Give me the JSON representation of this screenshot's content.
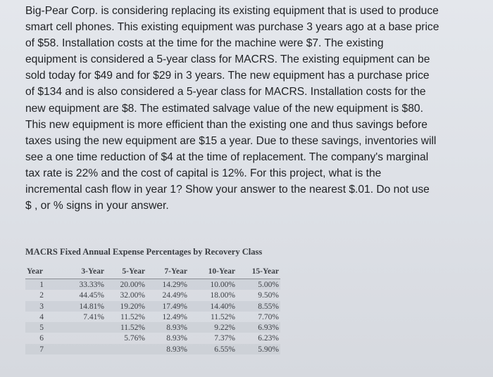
{
  "question": {
    "lines": [
      "Big-Pear Corp. is considering replacing its existing equipment that is used to produce",
      "smart cell phones. This existing equipment was purchase 3 years ago at a base price",
      "of $58. Installation costs at the time for the machine were $7. The existing",
      "equipment is considered a 5-year class for MACRS. The existing equipment can be",
      "sold today for $49 and for $29 in 3 years. The new equipment has a purchase price",
      "of $134 and is also considered a 5-year class for MACRS. Installation costs for the",
      "new equipment are $8. The estimated salvage value of the new equipment is $80.",
      "This new equipment is more efficient than the existing one and thus savings before",
      "taxes using the new equipment are $15 a year.  Due to these savings, inventories will",
      "see a one time reduction of $4 at the time of replacement. The company's marginal",
      "tax rate is 22% and the cost of capital is 12%. For this project, what is the",
      "incremental cash flow in year 1?  Show your answer to the nearest $.01.  Do not use",
      "$ , or % signs in your answer."
    ]
  },
  "macrs_table": {
    "title": "MACRS Fixed Annual Expense Percentages by Recovery Class",
    "headers": [
      "Year",
      "3-Year",
      "5-Year",
      "7-Year",
      "10-Year",
      "15-Year"
    ],
    "rows": [
      [
        "1",
        "33.33%",
        "20.00%",
        "14.29%",
        "10.00%",
        "5.00%"
      ],
      [
        "2",
        "44.45%",
        "32.00%",
        "24.49%",
        "18.00%",
        "9.50%"
      ],
      [
        "3",
        "14.81%",
        "19.20%",
        "17.49%",
        "14.40%",
        "8.55%"
      ],
      [
        "4",
        "7.41%",
        "11.52%",
        "12.49%",
        "11.52%",
        "7.70%"
      ],
      [
        "5",
        "",
        "11.52%",
        "8.93%",
        "9.22%",
        "6.93%"
      ],
      [
        "6",
        "",
        "5.76%",
        "8.93%",
        "7.37%",
        "6.23%"
      ],
      [
        "7",
        "",
        "",
        "8.93%",
        "6.55%",
        "5.90%"
      ]
    ]
  }
}
